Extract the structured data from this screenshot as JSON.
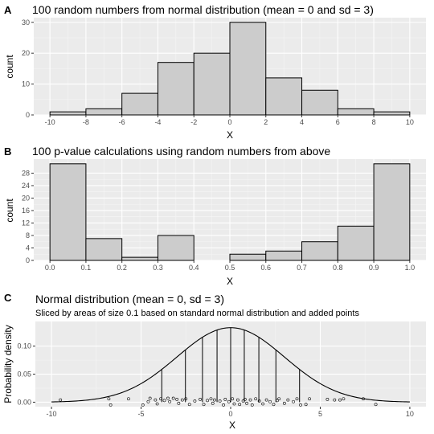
{
  "chart_data": [
    {
      "panel": "A",
      "type": "bar",
      "title": "100 random numbers from normal distribution (mean = 0 and sd = 3)",
      "xlabel": "X",
      "ylabel": "count",
      "bin_edges": [
        -10,
        -8,
        -6,
        -4,
        -2,
        0,
        2,
        4,
        6,
        8,
        10
      ],
      "values": [
        1,
        2,
        7,
        17,
        20,
        30,
        12,
        8,
        2,
        1
      ],
      "xticks": [
        -10,
        -8,
        -6,
        -4,
        -2,
        0,
        2,
        4,
        6,
        8,
        10
      ],
      "yticks": [
        0,
        10,
        20,
        30
      ],
      "xlim": [
        -10,
        10
      ],
      "ylim": [
        0,
        31.5
      ],
      "bar_fill": "#cccccc",
      "bar_stroke": "#000000",
      "panel_bg": "#ebebeb",
      "grid": true
    },
    {
      "panel": "B",
      "type": "bar",
      "title": "100 p-value calculations using random numbers from above",
      "xlabel": "X",
      "ylabel": "count",
      "bin_edges": [
        0.0,
        0.1,
        0.2,
        0.3,
        0.4,
        0.5,
        0.6,
        0.7,
        0.8,
        0.9,
        1.0
      ],
      "values": [
        31,
        7,
        1,
        8,
        0,
        2,
        3,
        6,
        11,
        31
      ],
      "xticks": [
        0.0,
        0.1,
        0.2,
        0.3,
        0.4,
        0.5,
        0.6,
        0.7,
        0.8,
        0.9,
        1.0
      ],
      "yticks": [
        0,
        4,
        8,
        12,
        16,
        20,
        24,
        28
      ],
      "xlim": [
        0,
        1
      ],
      "ylim": [
        0,
        32.5
      ],
      "bar_fill": "#cccccc",
      "bar_stroke": "#000000",
      "panel_bg": "#ebebeb",
      "grid": true
    },
    {
      "panel": "C",
      "type": "line",
      "title": "Normal distribution (mean = 0, sd = 3)",
      "subtitle": "Sliced by areas of size 0.1 based on standard normal distribution and added points",
      "xlabel": "X",
      "ylabel": "Probability density",
      "mean": 0,
      "sd": 3,
      "xticks": [
        -10,
        -5,
        0,
        5,
        10
      ],
      "yticks": [
        0.0,
        0.05,
        0.1
      ],
      "ytick_labels": [
        "0.00",
        "0.05",
        "0.10"
      ],
      "xlim": [
        -10,
        10
      ],
      "ylim": [
        -0.008,
        0.144
      ],
      "slice_x": [
        -3.845,
        -2.524,
        -1.573,
        -0.76,
        0,
        0.76,
        1.573,
        2.524,
        3.845
      ],
      "points": [
        {
          "x": -9.5,
          "y": 0.004
        },
        {
          "x": -6.8,
          "y": 0.006
        },
        {
          "x": -6.7,
          "y": -0.005
        },
        {
          "x": -5.7,
          "y": 0.006
        },
        {
          "x": -4.9,
          "y": -0.005
        },
        {
          "x": -4.6,
          "y": 0.001
        },
        {
          "x": -4.5,
          "y": 0.007
        },
        {
          "x": -4.2,
          "y": 0.004
        },
        {
          "x": -4.1,
          "y": -0.003
        },
        {
          "x": -3.9,
          "y": 0.006
        },
        {
          "x": -3.7,
          "y": 0.003
        },
        {
          "x": -3.5,
          "y": 0.007
        },
        {
          "x": -3.4,
          "y": 0.001
        },
        {
          "x": -3.2,
          "y": 0.007
        },
        {
          "x": -3.0,
          "y": 0.005
        },
        {
          "x": -2.9,
          "y": -0.002
        },
        {
          "x": -2.7,
          "y": 0.004
        },
        {
          "x": -2.5,
          "y": 0.006
        },
        {
          "x": -2.3,
          "y": -0.004
        },
        {
          "x": -2.0,
          "y": 0.002
        },
        {
          "x": -1.7,
          "y": 0.005
        },
        {
          "x": -1.5,
          "y": -0.004
        },
        {
          "x": -1.3,
          "y": 0.003
        },
        {
          "x": -1.1,
          "y": 0.006
        },
        {
          "x": -1.0,
          "y": -0.002
        },
        {
          "x": -0.9,
          "y": 0.004
        },
        {
          "x": -0.6,
          "y": 0.002
        },
        {
          "x": -0.4,
          "y": -0.005
        },
        {
          "x": -0.3,
          "y": 0.005
        },
        {
          "x": -0.1,
          "y": 0.001
        },
        {
          "x": 0.1,
          "y": 0.006
        },
        {
          "x": 0.2,
          "y": -0.003
        },
        {
          "x": 0.4,
          "y": 0.004
        },
        {
          "x": 0.5,
          "y": -0.004
        },
        {
          "x": 0.7,
          "y": 0.002
        },
        {
          "x": 0.8,
          "y": 0.005
        },
        {
          "x": 0.9,
          "y": -0.002
        },
        {
          "x": 1.1,
          "y": 0.004
        },
        {
          "x": 1.2,
          "y": -0.005
        },
        {
          "x": 1.4,
          "y": 0.006
        },
        {
          "x": 1.6,
          "y": 0.002
        },
        {
          "x": 1.8,
          "y": -0.003
        },
        {
          "x": 2.0,
          "y": 0.004
        },
        {
          "x": 2.2,
          "y": 0.001
        },
        {
          "x": 2.4,
          "y": -0.004
        },
        {
          "x": 2.6,
          "y": 0.003
        },
        {
          "x": 2.7,
          "y": 0.006
        },
        {
          "x": 3.0,
          "y": -0.002
        },
        {
          "x": 3.2,
          "y": 0.004
        },
        {
          "x": 3.5,
          "y": 0.001
        },
        {
          "x": 3.7,
          "y": 0.006
        },
        {
          "x": 3.9,
          "y": -0.005
        },
        {
          "x": 4.2,
          "y": -0.004
        },
        {
          "x": 4.4,
          "y": 0.006
        },
        {
          "x": 5.4,
          "y": 0.005
        },
        {
          "x": 5.8,
          "y": 0.004
        },
        {
          "x": 6.1,
          "y": 0.004
        },
        {
          "x": 6.3,
          "y": 0.006
        },
        {
          "x": 7.4,
          "y": 0.006
        },
        {
          "x": 8.1,
          "y": -0.004
        }
      ],
      "curve_color": "#000000",
      "point_stroke": "#000000",
      "panel_bg": "#ebebeb",
      "grid": true
    }
  ]
}
